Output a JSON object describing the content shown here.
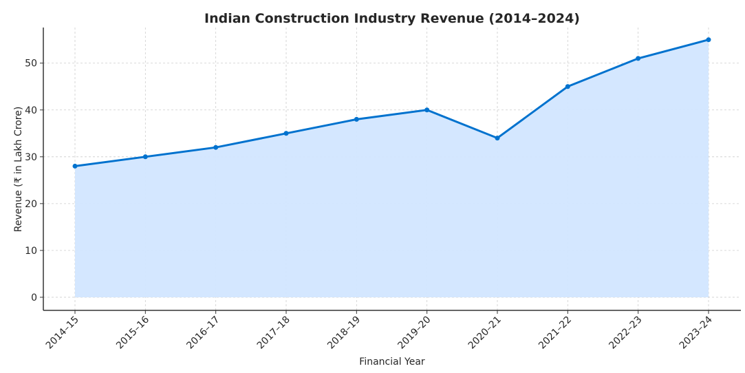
{
  "chart_data": {
    "type": "area",
    "title": "Indian Construction Industry Revenue (2014–2024)",
    "xlabel": "Financial Year",
    "ylabel": "Revenue (₹ in Lakh Crore)",
    "categories": [
      "2014–15",
      "2015–16",
      "2016–17",
      "2017–18",
      "2018–19",
      "2019–20",
      "2020–21",
      "2021–22",
      "2022–23",
      "2023–24"
    ],
    "values": [
      28,
      30,
      32,
      35,
      38,
      40,
      34,
      45,
      51,
      55
    ],
    "ylim": [
      -2.8,
      57.6
    ],
    "yticks": [
      0,
      10,
      20,
      30,
      40,
      50
    ],
    "grid": true,
    "line_color": "#0072CE",
    "fill_color": "#D2E6FF"
  }
}
